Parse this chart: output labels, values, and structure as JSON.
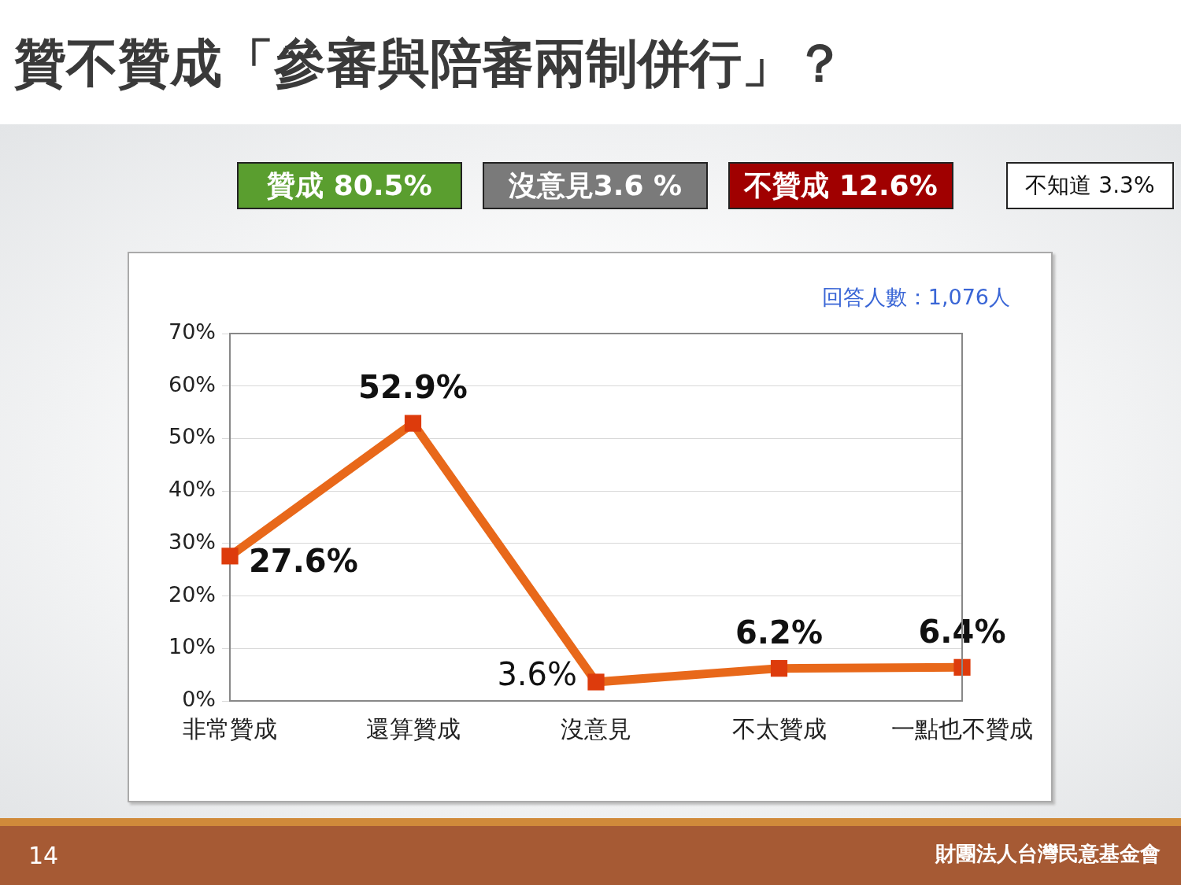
{
  "chart_data": {
    "type": "line",
    "title": "贊不贊成「參審與陪審兩制併行」？",
    "categories": [
      "非常贊成",
      "還算贊成",
      "沒意見",
      "不太贊成",
      "一點也不贊成"
    ],
    "series": [
      {
        "color": "#e8681a",
        "values": [
          27.6,
          52.9,
          3.6,
          6.2,
          6.4
        ],
        "value_labels": [
          "27.6%",
          "52.9%",
          "3.6%",
          "6.2%",
          "6.4%"
        ]
      }
    ],
    "ylim": [
      0,
      70
    ],
    "yticks": [
      {
        "value": 0,
        "label": "0%"
      },
      {
        "value": 10,
        "label": "10%"
      },
      {
        "value": 20,
        "label": "20%"
      },
      {
        "value": 30,
        "label": "30%"
      },
      {
        "value": 40,
        "label": "40%"
      },
      {
        "value": 50,
        "label": "50%"
      },
      {
        "value": 60,
        "label": "60%"
      },
      {
        "value": 70,
        "label": "70%"
      }
    ],
    "grid": "y",
    "legend": false,
    "marker": "square",
    "line_style": "solid",
    "annotations": [
      "贊成 80.5%",
      "沒意見3.6 %",
      "不贊成 12.6%",
      "不知道 3.3%",
      "回答人數：1,076人",
      "14",
      "財團法人台灣民意基金會"
    ]
  }
}
